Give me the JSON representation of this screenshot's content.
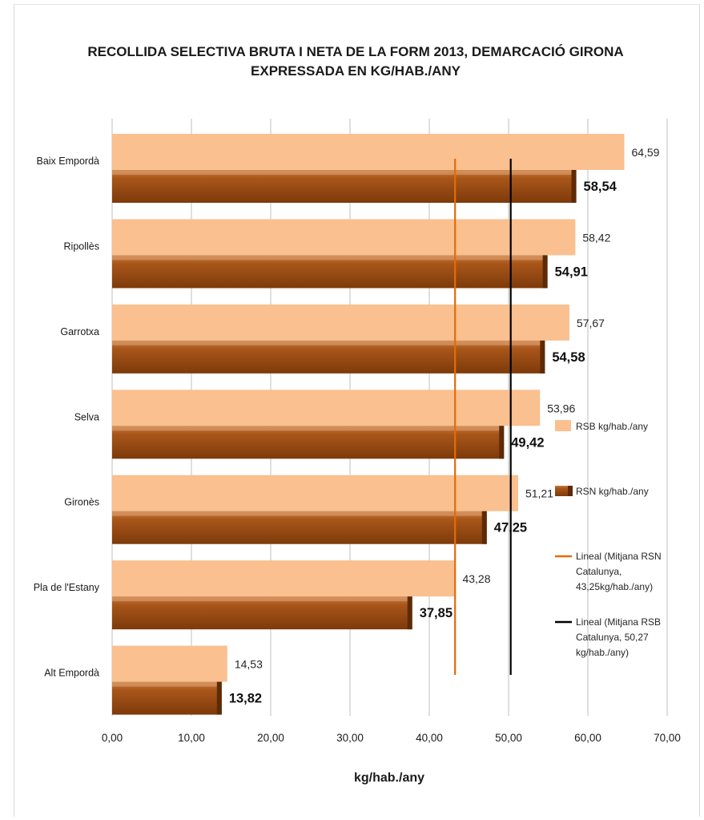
{
  "chart_data": {
    "type": "bar",
    "orientation": "horizontal",
    "title": [
      "RECOLLIDA SELECTIVA BRUTA I NETA DE LA FORM 2013, DEMARCACIÓ GIRONA",
      "EXPRESSADA EN KG/HAB./ANY"
    ],
    "xlabel": "kg/hab./any",
    "ylabel": "",
    "xlim": [
      0,
      70
    ],
    "xticks": [
      "0,00",
      "10,00",
      "20,00",
      "30,00",
      "40,00",
      "50,00",
      "60,00",
      "70,00"
    ],
    "grid": true,
    "legend_position": "right",
    "categories": [
      "Baix Empordà",
      "Ripollès",
      "Garrotxa",
      "Selva",
      "Gironès",
      "Pla de l'Estany",
      "Alt Empordà"
    ],
    "series": [
      {
        "name": "RSB kg/hab./any",
        "color": "#fac090",
        "values": [
          64.59,
          58.42,
          57.67,
          53.96,
          51.21,
          43.28,
          14.53
        ],
        "labels": [
          "64,59",
          "58,42",
          "57,67",
          "53,96",
          "51,21",
          "43,28",
          "14,53"
        ]
      },
      {
        "name": "RSN kg/hab./any",
        "color": "#9c4a0e",
        "values": [
          58.54,
          54.91,
          54.58,
          49.42,
          47.25,
          37.85,
          13.82
        ],
        "labels": [
          "58,54",
          "54,91",
          "54,58",
          "49,42",
          "47,25",
          "37,85",
          "13,82"
        ]
      }
    ],
    "reference_lines": [
      {
        "name": [
          "Lineal (Mitjana RSN",
          "Catalunya,",
          "43,25kg/hab./any)"
        ],
        "value": 43.25,
        "color": "#e36c09"
      },
      {
        "name": [
          "Lineal (Mitjana RSB",
          "Catalunya, 50,27",
          "kg/hab./any)"
        ],
        "value": 50.27,
        "color": "#000000"
      }
    ]
  }
}
